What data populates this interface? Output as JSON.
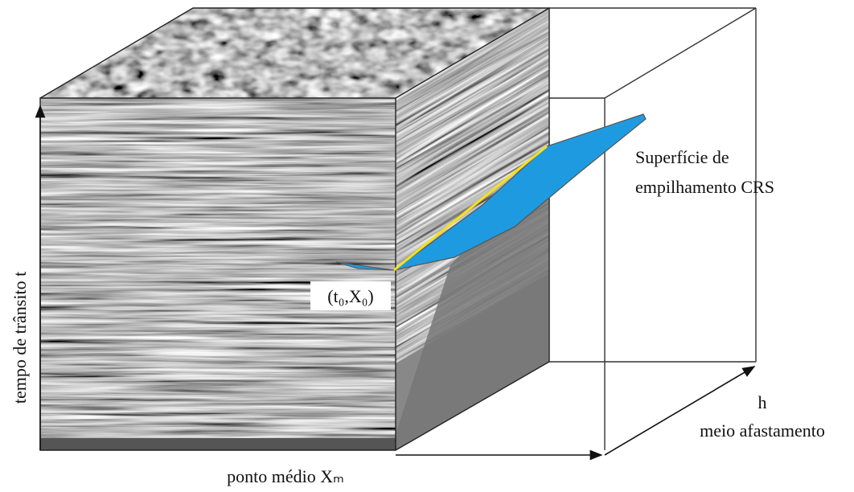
{
  "labels": {
    "surface": [
      "Superfície de",
      "empilhamento CRS"
    ],
    "time_axis": "tempo de trânsito t",
    "midpoint_axis": "ponto médio Xₘ",
    "offset_symbol": "h",
    "offset_axis": "meio afastamento",
    "point": "(t₀,X₀)"
  }
}
